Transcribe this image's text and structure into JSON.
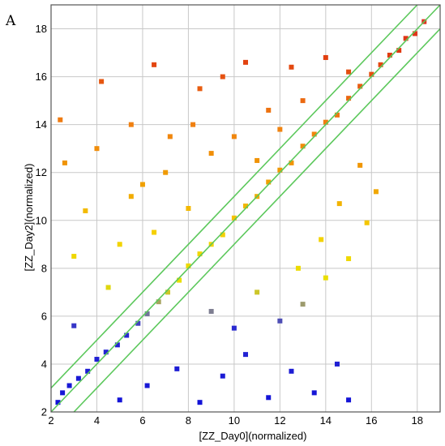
{
  "chart_data": {
    "type": "scatter",
    "panel_label": "A",
    "title": "",
    "xlabel": "[ZZ_Day0](normalized)",
    "ylabel": "[ZZ_Day2](normalized)",
    "xlim": [
      2,
      19
    ],
    "ylim": [
      2,
      19
    ],
    "xticks": [
      2,
      4,
      6,
      8,
      10,
      12,
      14,
      16,
      18
    ],
    "yticks": [
      2,
      4,
      6,
      8,
      10,
      12,
      14,
      16,
      18
    ],
    "grid": true,
    "legend": "none",
    "reference_lines": [
      {
        "slope": 1,
        "intercept": 0,
        "color": "#5cc85c"
      },
      {
        "slope": 1,
        "intercept": 1,
        "color": "#5cc85c"
      },
      {
        "slope": 1,
        "intercept": -1,
        "color": "#5cc85c"
      }
    ],
    "color_scale": [
      {
        "y": 2,
        "color": "#1010d8"
      },
      {
        "y": 5.5,
        "color": "#2a2ad0"
      },
      {
        "y": 6.3,
        "color": "#8a8a88"
      },
      {
        "y": 7.3,
        "color": "#e8e000"
      },
      {
        "y": 9.5,
        "color": "#f5d000"
      },
      {
        "y": 11.5,
        "color": "#f0a000"
      },
      {
        "y": 14,
        "color": "#f08010"
      },
      {
        "y": 17,
        "color": "#e03a10"
      },
      {
        "y": 18.5,
        "color": "#e03020"
      }
    ],
    "series": [
      {
        "points": [
          [
            2.3,
            2.4
          ],
          [
            2.5,
            2.8
          ],
          [
            2.8,
            3.1
          ],
          [
            3.2,
            3.4
          ],
          [
            3.6,
            3.7
          ],
          [
            4.0,
            4.2
          ],
          [
            4.4,
            4.5
          ],
          [
            4.9,
            4.8
          ],
          [
            5.3,
            5.2
          ],
          [
            5.8,
            5.7
          ],
          [
            6.2,
            6.1
          ],
          [
            6.7,
            6.6
          ],
          [
            7.1,
            7.0
          ],
          [
            7.6,
            7.5
          ],
          [
            8.0,
            8.1
          ],
          [
            8.5,
            8.6
          ],
          [
            9.0,
            9.0
          ],
          [
            9.5,
            9.4
          ],
          [
            10.0,
            10.1
          ],
          [
            10.5,
            10.6
          ],
          [
            11.0,
            11.0
          ],
          [
            11.5,
            11.6
          ],
          [
            12.0,
            12.1
          ],
          [
            12.5,
            12.4
          ],
          [
            13.0,
            13.1
          ],
          [
            13.5,
            13.6
          ],
          [
            14.0,
            14.1
          ],
          [
            14.5,
            14.4
          ],
          [
            15.0,
            15.1
          ],
          [
            15.5,
            15.6
          ],
          [
            16.0,
            16.1
          ],
          [
            16.4,
            16.5
          ],
          [
            16.8,
            16.9
          ],
          [
            17.2,
            17.1
          ],
          [
            17.5,
            17.6
          ],
          [
            17.9,
            17.8
          ],
          [
            18.3,
            18.3
          ],
          [
            3.0,
            5.6
          ],
          [
            4.5,
            7.2
          ],
          [
            5.0,
            9.0
          ],
          [
            3.5,
            10.4
          ],
          [
            2.6,
            12.4
          ],
          [
            2.4,
            14.2
          ],
          [
            4.2,
            15.8
          ],
          [
            5.5,
            14.0
          ],
          [
            6.5,
            16.5
          ],
          [
            7.2,
            13.5
          ],
          [
            8.5,
            15.5
          ],
          [
            9.5,
            16.0
          ],
          [
            10.5,
            16.6
          ],
          [
            11.5,
            14.6
          ],
          [
            12.5,
            16.4
          ],
          [
            13.0,
            15.0
          ],
          [
            14.0,
            16.8
          ],
          [
            15.0,
            16.2
          ],
          [
            6.0,
            11.5
          ],
          [
            7.0,
            12.0
          ],
          [
            8.0,
            10.5
          ],
          [
            9.0,
            12.8
          ],
          [
            10.0,
            13.5
          ],
          [
            11.0,
            12.5
          ],
          [
            12.0,
            13.8
          ],
          [
            4.0,
            13.0
          ],
          [
            3.0,
            8.5
          ],
          [
            5.5,
            11.0
          ],
          [
            6.5,
            9.5
          ],
          [
            8.2,
            14.0
          ],
          [
            5.0,
            2.5
          ],
          [
            6.2,
            3.1
          ],
          [
            7.5,
            3.8
          ],
          [
            8.5,
            2.4
          ],
          [
            9.5,
            3.5
          ],
          [
            10.5,
            4.4
          ],
          [
            11.5,
            2.6
          ],
          [
            12.5,
            3.7
          ],
          [
            13.5,
            2.8
          ],
          [
            14.5,
            4.0
          ],
          [
            15.0,
            2.5
          ],
          [
            12.0,
            5.8
          ],
          [
            13.0,
            6.5
          ],
          [
            14.0,
            7.6
          ],
          [
            15.0,
            8.4
          ],
          [
            15.8,
            9.9
          ],
          [
            14.6,
            10.7
          ],
          [
            10.0,
            5.5
          ],
          [
            11.0,
            7.0
          ],
          [
            9.0,
            6.2
          ],
          [
            13.8,
            9.2
          ],
          [
            12.8,
            8.0
          ],
          [
            16.2,
            11.2
          ],
          [
            15.5,
            12.3
          ]
        ]
      }
    ]
  }
}
